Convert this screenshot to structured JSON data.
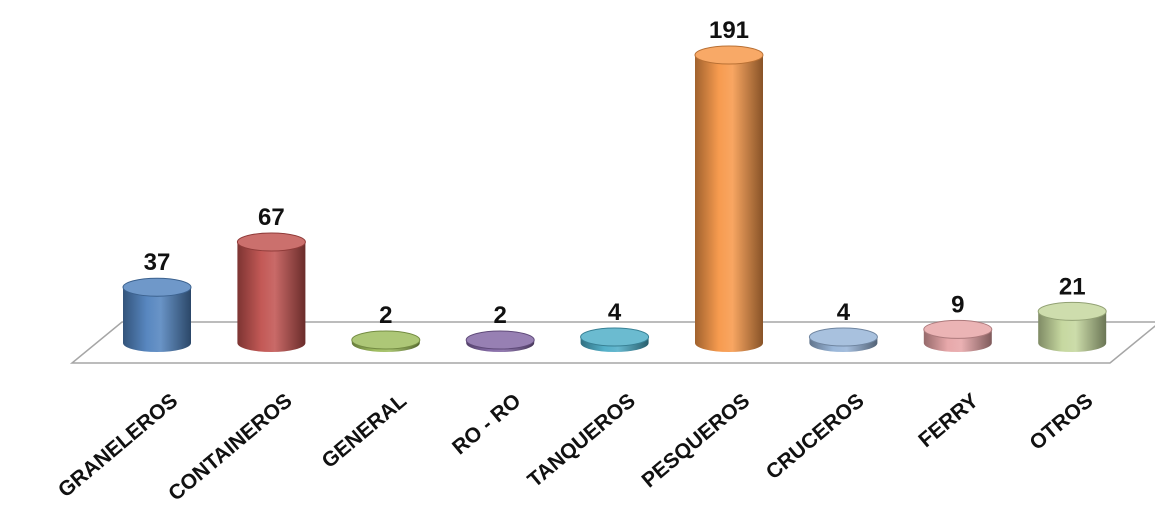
{
  "chart_data": {
    "type": "bar",
    "categories": [
      "GRANELEROS",
      "CONTAINEROS",
      "GENERAL",
      "RO - RO",
      "TANQUEROS",
      "PESQUEROS",
      "CRUCEROS",
      "FERRY",
      "OTROS"
    ],
    "values": [
      37,
      67,
      2,
      2,
      4,
      191,
      4,
      9,
      21
    ],
    "colors": [
      "#4f81bd",
      "#c0504d",
      "#9bbb59",
      "#8064a2",
      "#4bacc6",
      "#f79646",
      "#95b3d7",
      "#e6a3a5",
      "#c3d69b"
    ],
    "style": "3d-cylinder",
    "data_labels": true,
    "grid": false,
    "legend": "none",
    "ylim": [
      0,
      191
    ]
  }
}
